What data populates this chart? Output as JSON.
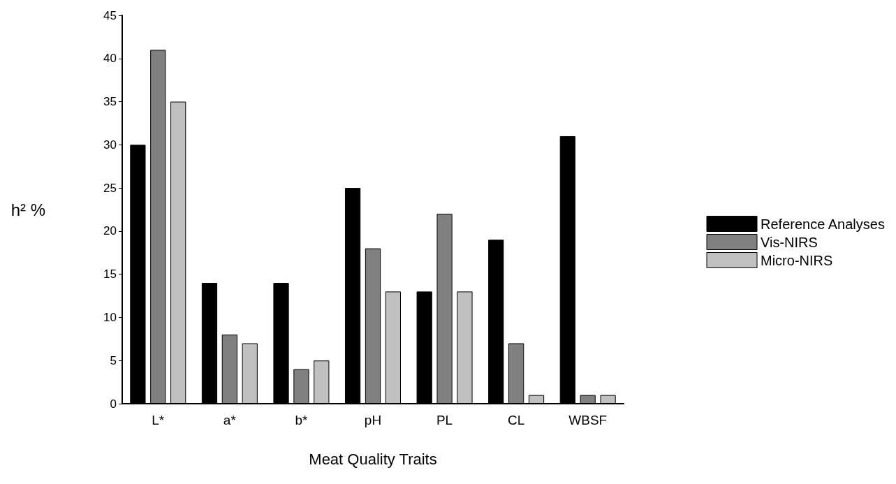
{
  "chart_data": {
    "type": "bar",
    "xlabel": "Meat Quality Traits",
    "ylabel": "h² %",
    "categories": [
      "L*",
      "a*",
      "b*",
      "pH",
      "PL",
      "CL",
      "WBSF"
    ],
    "series": [
      {
        "name": "Reference Analyses",
        "color": "#000000",
        "values": [
          30,
          14,
          14,
          25,
          13,
          19,
          31
        ]
      },
      {
        "name": "Vis-NIRS",
        "color": "#808080",
        "values": [
          41,
          8,
          4,
          18,
          22,
          7,
          1
        ]
      },
      {
        "name": "Micro-NIRS",
        "color": "#c0c0c0",
        "values": [
          35,
          7,
          5,
          13,
          13,
          1,
          1
        ]
      }
    ],
    "ylim": [
      0,
      45
    ],
    "yticks": [
      0,
      5,
      10,
      15,
      20,
      25,
      30,
      35,
      40,
      45
    ],
    "grid": false,
    "legend": "right"
  }
}
